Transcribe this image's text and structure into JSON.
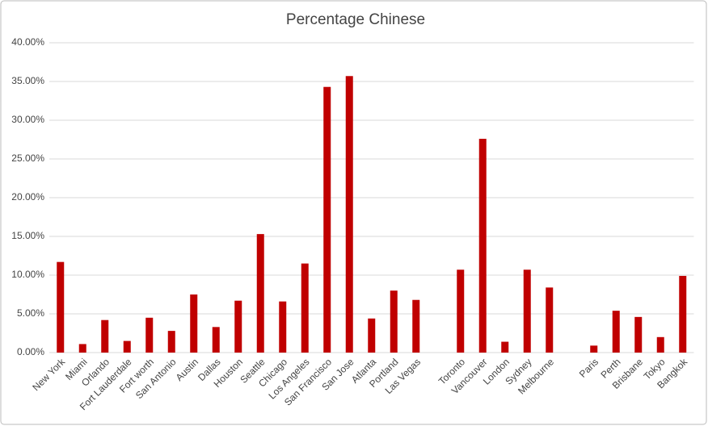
{
  "chart_data": {
    "type": "bar",
    "title": "Percentage Chinese",
    "categories": [
      "New York",
      "Miami",
      "Orlando",
      "Fort Lauderdale",
      "Fort worth",
      "San Antonio",
      "Austin",
      "Dallas",
      "Houston",
      "Seattle",
      "Chicago",
      "Los Angeles",
      "San Francisco",
      "San Jose",
      "Atlanta",
      "Portland",
      "Las Vegas",
      null,
      "Toronto",
      "Vancouver",
      "London",
      "Sydney",
      "Melbourne",
      null,
      "Paris",
      "Perth",
      "Brisbane",
      "Tokyo",
      "Bangkok"
    ],
    "values": [
      11.7,
      1.1,
      4.2,
      1.5,
      4.5,
      2.8,
      7.5,
      3.3,
      6.7,
      15.3,
      6.6,
      11.5,
      34.3,
      35.7,
      4.4,
      8.0,
      6.8,
      null,
      10.7,
      27.6,
      1.4,
      10.7,
      8.4,
      null,
      0.9,
      5.4,
      4.6,
      2.0,
      9.9
    ],
    "color": "#c00000",
    "ylim": [
      0,
      40
    ],
    "yticks": [
      {
        "value": 0,
        "label": "0.00%"
      },
      {
        "value": 5,
        "label": "5.00%"
      },
      {
        "value": 10,
        "label": "10.00%"
      },
      {
        "value": 15,
        "label": "15.00%"
      },
      {
        "value": 20,
        "label": "20.00%"
      },
      {
        "value": 25,
        "label": "25.00%"
      },
      {
        "value": 30,
        "label": "30.00%"
      },
      {
        "value": 35,
        "label": "35.00%"
      },
      {
        "value": 40,
        "label": "40.00%"
      }
    ],
    "grid": true
  }
}
